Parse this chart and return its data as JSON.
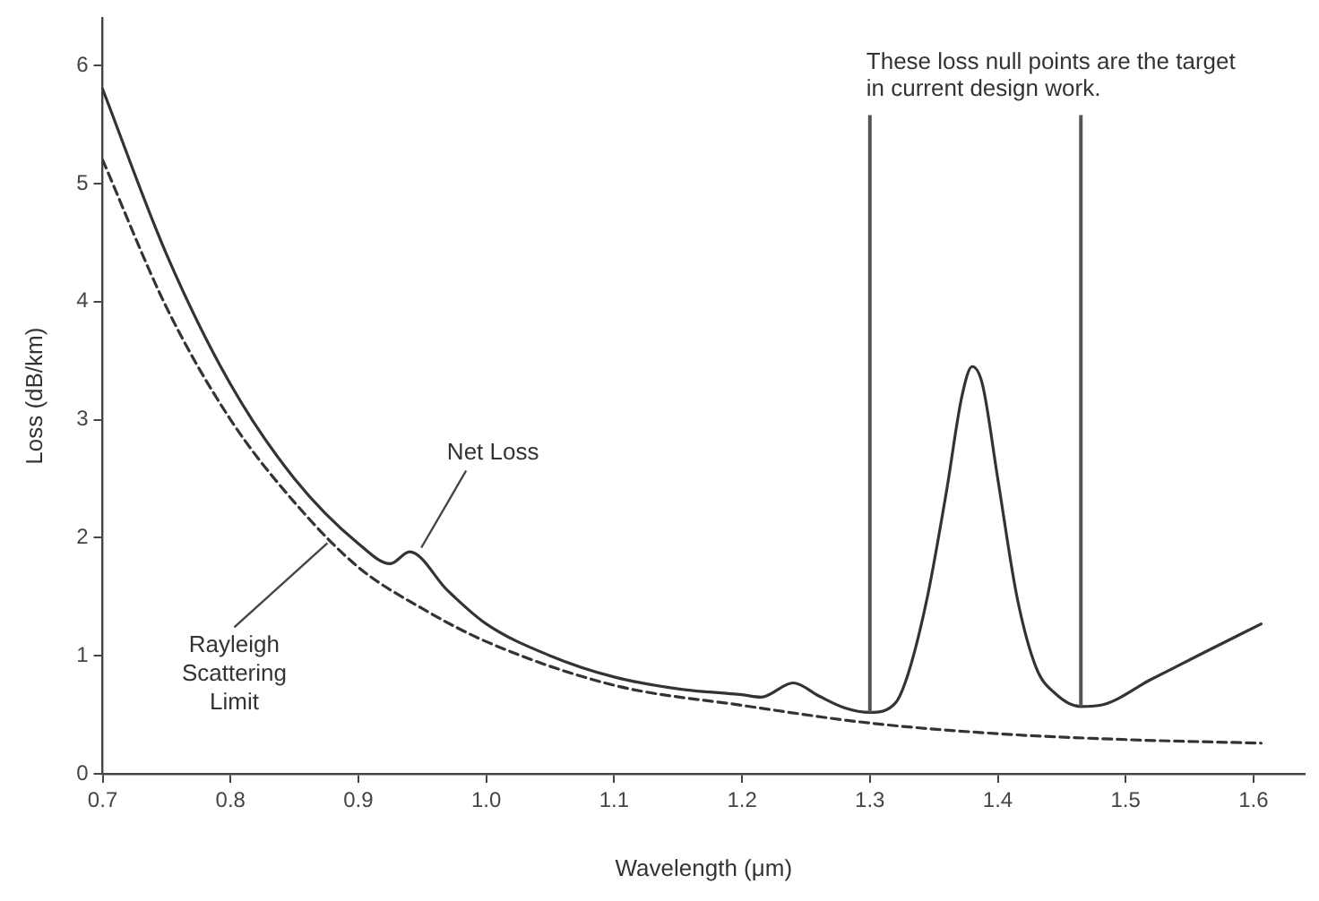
{
  "chart_data": {
    "type": "line",
    "xlabel": "Wavelength (μm)",
    "ylabel": "Loss (dB/km)",
    "xlim": [
      0.7,
      1.64
    ],
    "ylim": [
      0,
      6.4
    ],
    "xticks": [
      0.7,
      0.8,
      0.9,
      {
        "value": 1,
        "label": "1.0"
      },
      1.1,
      1.2,
      1.3,
      1.4,
      1.5,
      1.6
    ],
    "yticks": [
      0,
      1,
      2,
      3,
      4,
      5,
      6
    ],
    "grid": false,
    "legend": false,
    "marker": "none",
    "series": [
      {
        "color": "#333333",
        "line_style": "solid",
        "x": [
          0.7,
          0.75,
          0.8,
          0.85,
          0.9,
          0.925,
          0.94,
          0.97,
          1.0,
          1.05,
          1.1,
          1.15,
          1.2,
          1.215,
          1.24,
          1.26,
          1.28,
          1.3,
          1.32,
          1.33,
          1.345,
          1.36,
          1.372,
          1.38,
          1.388,
          1.4,
          1.415,
          1.43,
          1.445,
          1.465,
          1.48,
          1.52,
          1.56,
          1.606
        ],
        "values": [
          5.8,
          4.4,
          3.3,
          2.5,
          1.95,
          1.78,
          1.88,
          1.55,
          1.27,
          1.0,
          0.82,
          0.72,
          0.67,
          0.65,
          0.77,
          0.66,
          0.56,
          0.52,
          0.6,
          0.85,
          1.5,
          2.4,
          3.2,
          3.45,
          3.3,
          2.5,
          1.5,
          0.9,
          0.68,
          0.57,
          0.58,
          0.8,
          1.02,
          1.27
        ]
      },
      {
        "color": "#333333",
        "line_style": "dashed",
        "x": [
          0.7,
          0.75,
          0.8,
          0.85,
          0.9,
          0.95,
          1.0,
          1.1,
          1.2,
          1.3,
          1.4,
          1.5,
          1.606
        ],
        "values": [
          5.2,
          3.95,
          3.0,
          2.3,
          1.75,
          1.4,
          1.12,
          0.75,
          0.58,
          0.43,
          0.34,
          0.29,
          0.26
        ]
      }
    ],
    "ref_lines": [
      {
        "axis": "x",
        "value": 1.3,
        "color": "#555555"
      },
      {
        "axis": "x",
        "value": 1.465,
        "color": "#555555"
      }
    ],
    "annotations": [
      {
        "text": "Net Loss",
        "x": 0.945,
        "y": 1.87
      },
      {
        "text": "Rayleigh Scattering Limit",
        "x": 0.88,
        "y": 2.0
      },
      "These loss null points are the target in current design work."
    ]
  }
}
